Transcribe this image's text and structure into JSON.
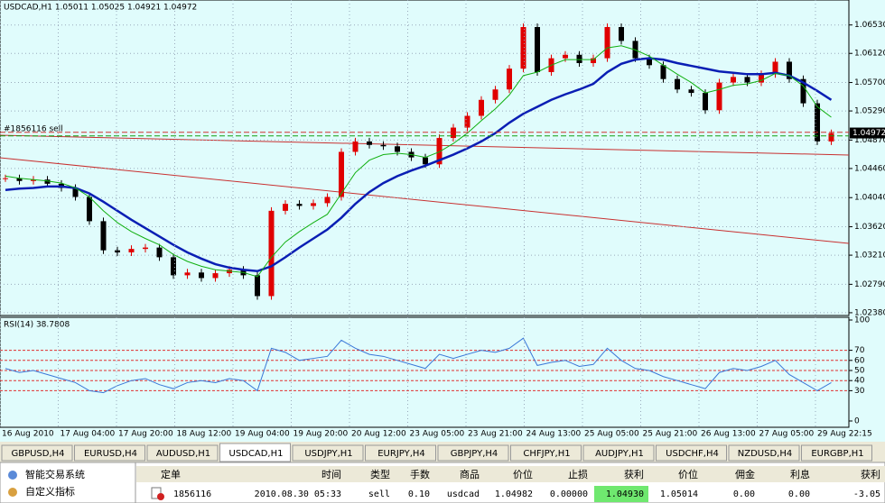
{
  "chart_data": [
    {
      "type": "candlestick",
      "title": "USDCAD,H1  1.05011 1.05025 1.04921 1.04972",
      "order_label": "#1856116 sell",
      "closes": [
        1.0432,
        1.0428,
        1.043,
        1.0424,
        1.0418,
        1.0405,
        1.037,
        1.0328,
        1.0325,
        1.033,
        1.0332,
        1.0318,
        1.0292,
        1.0296,
        1.0288,
        1.0295,
        1.03,
        1.0292,
        1.0262,
        1.0385,
        1.0395,
        1.0392,
        1.0396,
        1.0405,
        1.047,
        1.0485,
        1.048,
        1.0478,
        1.047,
        1.0462,
        1.0452,
        1.049,
        1.0505,
        1.0522,
        1.0545,
        1.056,
        1.059,
        1.065,
        1.0585,
        1.0605,
        1.061,
        1.0598,
        1.0605,
        1.065,
        1.063,
        1.0605,
        1.0595,
        1.0575,
        1.056,
        1.0555,
        1.053,
        1.057,
        1.0578,
        1.057,
        1.0582,
        1.06,
        1.0575,
        1.054,
        1.0485,
        1.0497
      ],
      "up_color": "#e00000",
      "down_color": "#000000",
      "overlays": [
        {
          "color": "#0a1eb4",
          "values": [
            1.0415,
            1.0417,
            1.0418,
            1.042,
            1.042,
            1.0418,
            1.041,
            1.0398,
            1.0385,
            1.0372,
            1.036,
            1.0348,
            1.0336,
            1.0325,
            1.0316,
            1.0308,
            1.0303,
            1.03,
            1.0298,
            1.0305,
            1.0318,
            1.0332,
            1.0345,
            1.0358,
            1.0375,
            1.0395,
            1.0412,
            1.0425,
            1.0435,
            1.0443,
            1.045,
            1.0458,
            1.0466,
            1.0475,
            1.0485,
            1.0497,
            1.0512,
            1.0525,
            1.0535,
            1.0545,
            1.0553,
            1.056,
            1.0568,
            1.0585,
            1.0597,
            1.0603,
            1.0605,
            1.0603,
            1.0598,
            1.0594,
            1.059,
            1.0586,
            1.0584,
            1.0582,
            1.0582,
            1.0584,
            1.058,
            1.057,
            1.0558,
            1.0545
          ]
        },
        {
          "color": "#10b010",
          "values": [
            1.0435,
            1.0432,
            1.043,
            1.0428,
            1.0425,
            1.0418,
            1.0405,
            1.0385,
            1.0368,
            1.0355,
            1.0345,
            1.0336,
            1.0322,
            1.0312,
            1.0305,
            1.03,
            1.0298,
            1.0296,
            1.029,
            1.0318,
            1.034,
            1.0355,
            1.0368,
            1.038,
            1.041,
            1.044,
            1.0458,
            1.0466,
            1.0468,
            1.0466,
            1.0462,
            1.047,
            1.0482,
            1.0497,
            1.0515,
            1.0532,
            1.0552,
            1.058,
            1.0585,
            1.0595,
            1.0603,
            1.0603,
            1.0603,
            1.062,
            1.0623,
            1.0617,
            1.0608,
            1.0595,
            1.0582,
            1.057,
            1.0555,
            1.056,
            1.0566,
            1.0568,
            1.0573,
            1.0583,
            1.058,
            1.0565,
            1.0535,
            1.052
          ]
        }
      ],
      "ylim": [
        1.0234,
        1.0689
      ],
      "yticks": [
        {
          "value": 1.0238,
          "label": "1.02380"
        },
        {
          "value": 1.0279,
          "label": "1.02790"
        },
        {
          "value": 1.0321,
          "label": "1.03210"
        },
        {
          "value": 1.0362,
          "label": "1.03620"
        },
        {
          "value": 1.0404,
          "label": "1.04040"
        },
        {
          "value": 1.0446,
          "label": "1.04460"
        },
        {
          "value": 1.0487,
          "label": "1.04870"
        },
        {
          "value": 1.0529,
          "label": "1.05290"
        },
        {
          "value": 1.057,
          "label": "1.05700"
        },
        {
          "value": 1.0612,
          "label": "1.06120"
        },
        {
          "value": 1.0653,
          "label": "1.06530"
        }
      ],
      "current_price": 1.04972,
      "grid": true
    },
    {
      "type": "line",
      "title": "RSI(14) 38.7808",
      "color": "#3a78d8",
      "values": [
        52,
        48,
        50,
        46,
        42,
        38,
        30,
        28,
        35,
        40,
        42,
        36,
        32,
        38,
        40,
        38,
        42,
        40,
        30,
        72,
        68,
        60,
        62,
        64,
        80,
        72,
        66,
        64,
        60,
        56,
        52,
        66,
        62,
        66,
        70,
        68,
        72,
        82,
        55,
        58,
        60,
        54,
        56,
        72,
        60,
        52,
        50,
        44,
        40,
        36,
        32,
        48,
        52,
        50,
        54,
        60,
        46,
        38,
        30,
        38
      ],
      "ylim": [
        0,
        100
      ],
      "yticks": [
        0,
        30,
        40,
        50,
        60,
        70,
        100
      ],
      "levels": [
        30,
        40,
        50,
        60,
        70
      ],
      "x_tick_labels": [
        "16 Aug 2010",
        "17 Aug 04:00",
        "17 Aug 20:00",
        "18 Aug 12:00",
        "19 Aug 04:00",
        "19 Aug 20:00",
        "20 Aug 12:00",
        "23 Aug 05:00",
        "23 Aug 21:00",
        "24 Aug 13:00",
        "25 Aug 05:00",
        "25 Aug 21:00",
        "26 Aug 13:00",
        "27 Aug 05:00",
        "29 Aug 22:15"
      ]
    }
  ],
  "tabs": [
    "GBPUSD,H4",
    "EURUSD,H4",
    "AUDUSD,H1",
    "USDCAD,H1",
    "USDJPY,H1",
    "EURJPY,H4",
    "GBPJPY,H4",
    "CHFJPY,H1",
    "AUDJPY,H1",
    "USDCHF,H4",
    "NZDUSD,H4",
    "EURGBP,H1"
  ],
  "active_tab": 3,
  "navigator": [
    "智能交易系统",
    "自定义指标"
  ],
  "table": {
    "headers": [
      "定单",
      "时间",
      "类型",
      "手数",
      "商品",
      "价位",
      "止损",
      "获利",
      "价位",
      "佣金",
      "利息",
      "获利"
    ],
    "rows": [
      [
        "1856116",
        "2010.08.30 05:33",
        "sell",
        "0.10",
        "usdcad",
        "1.04982",
        "0.00000",
        "1.04930",
        "1.05014",
        "0.00",
        "0.00",
        "-3.05"
      ]
    ]
  }
}
